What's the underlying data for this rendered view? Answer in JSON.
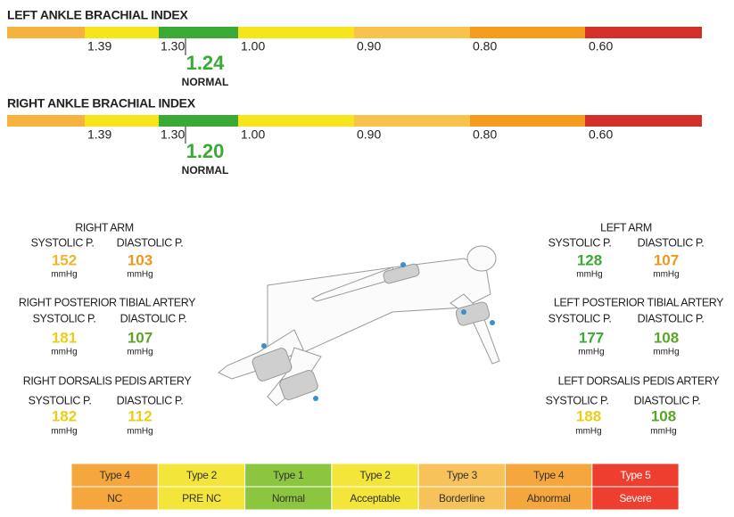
{
  "abi": [
    {
      "title": "LEFT ANKLE BRACHIAL INDEX",
      "scale_labels": [
        "1.39",
        "1.30",
        "1.00",
        "0.90",
        "0.80",
        "0.60"
      ],
      "value": "1.24",
      "value_color": "#3aa935",
      "status": "NORMAL"
    },
    {
      "title": "RIGHT ANKLE BRACHIAL INDEX",
      "scale_labels": [
        "1.39",
        "1.30",
        "1.00",
        "0.90",
        "0.80",
        "0.60"
      ],
      "value": "1.20",
      "value_color": "#3aa935",
      "status": "NORMAL"
    }
  ],
  "pressures": [
    {
      "title": "RIGHT ARM",
      "systolic_label": "SYSTOLIC P.",
      "diastolic_label": "DIASTOLIC P.",
      "systolic": 152,
      "systolic_color": "#f3b32a",
      "diastolic": 103,
      "diastolic_color": "#f0961c",
      "unit": "mmHg"
    },
    {
      "title": "RIGHT POSTERIOR TIBIAL ARTERY",
      "systolic_label": "SYSTOLIC P.",
      "diastolic_label": "DIASTOLIC P.",
      "systolic": 181,
      "systolic_color": "#e8cf16",
      "diastolic": 107,
      "diastolic_color": "#5aa528",
      "unit": "mmHg"
    },
    {
      "title": "RIGHT DORSALIS PEDIS ARTERY",
      "systolic_label": "SYSTOLIC P.",
      "diastolic_label": "DIASTOLIC P.",
      "systolic": 182,
      "systolic_color": "#e8cf16",
      "diastolic": 112,
      "diastolic_color": "#e8cf16",
      "unit": "mmHg"
    },
    {
      "title": "LEFT ARM",
      "systolic_label": "SYSTOLIC P.",
      "diastolic_label": "DIASTOLIC P.",
      "systolic": 128,
      "systolic_color": "#3aa935",
      "diastolic": 107,
      "diastolic_color": "#f0961c",
      "unit": "mmHg"
    },
    {
      "title": "LEFT POSTERIOR TIBIAL ARTERY",
      "systolic_label": "SYSTOLIC P.",
      "diastolic_label": "DIASTOLIC P.",
      "systolic": 177,
      "systolic_color": "#3aa935",
      "diastolic": 108,
      "diastolic_color": "#5aa528",
      "unit": "mmHg"
    },
    {
      "title": "LEFT DORSALIS PEDIS ARTERY",
      "systolic_label": "SYSTOLIC P.",
      "diastolic_label": "DIASTOLIC P.",
      "systolic": 188,
      "systolic_color": "#e8cf16",
      "diastolic": 108,
      "diastolic_color": "#5aa528",
      "unit": "mmHg"
    }
  ],
  "legend": {
    "types": [
      "Type 4",
      "Type 2",
      "Type 1",
      "Type 2",
      "Type 3",
      "Type 4",
      "Type 5"
    ],
    "labels": [
      "NC",
      "PRE NC",
      "Normal",
      "Acceptable",
      "Borderline",
      "Abnormal",
      "Severe"
    ],
    "colors": [
      "#f5a63c",
      "#f3e53a",
      "#8cc63f",
      "#f3e53a",
      "#f8c25a",
      "#f5a63c",
      "#ee3e2f"
    ]
  }
}
